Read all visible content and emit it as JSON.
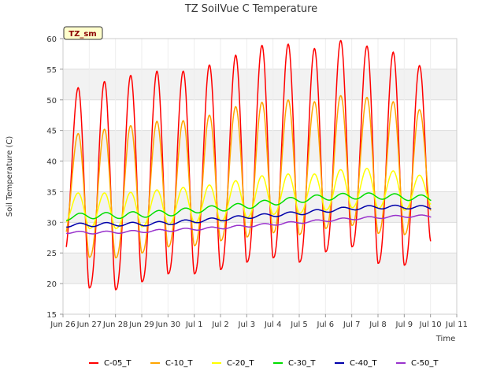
{
  "chart_data": {
    "type": "line",
    "title": "TZ SoilVue C Temperature",
    "xlabel": "Time",
    "ylabel": "Soil Temperature (C)",
    "tag": "TZ_sm",
    "ylim": [
      15,
      60
    ],
    "yticks": [
      15,
      20,
      25,
      30,
      35,
      40,
      45,
      50,
      55,
      60
    ],
    "xlim": [
      "2024-06-26",
      "2024-07-11"
    ],
    "xticks": [
      "Jun 26",
      "Jun 27",
      "Jun 28",
      "Jun 29",
      "Jun 30",
      "Jul 1",
      "Jul 2",
      "Jul 3",
      "Jul 4",
      "Jul 5",
      "Jul 6",
      "Jul 7",
      "Jul 8",
      "Jul 9",
      "Jul 10",
      "Jul 11"
    ],
    "grid": true,
    "legend_position": "bottom",
    "x_dates": [
      "2024-06-26",
      "2024-06-27",
      "2024-06-28",
      "2024-06-29",
      "2024-06-30",
      "2024-07-01",
      "2024-07-02",
      "2024-07-03",
      "2024-07-04",
      "2024-07-05",
      "2024-07-06",
      "2024-07-07",
      "2024-07-08",
      "2024-07-09",
      "2024-07-10"
    ],
    "series": [
      {
        "name": "C-05_T",
        "color": "#ff0000",
        "daily_max": [
          52.0,
          53.0,
          54.0,
          54.7,
          54.7,
          55.7,
          57.3,
          58.9,
          59.1,
          58.4,
          59.7,
          58.8,
          57.8,
          55.6,
          null
        ],
        "daily_min": [
          24.4,
          19.3,
          19.0,
          20.3,
          21.6,
          21.6,
          22.3,
          23.5,
          24.2,
          23.5,
          25.2,
          26.0,
          23.3,
          23.0,
          27.0
        ]
      },
      {
        "name": "C-10_T",
        "color": "#ffa500",
        "daily_max": [
          44.5,
          45.2,
          45.8,
          46.5,
          46.6,
          47.5,
          48.9,
          49.6,
          50.0,
          49.7,
          50.7,
          50.4,
          49.7,
          48.4,
          null
        ],
        "daily_min": [
          27.5,
          24.3,
          24.2,
          25.0,
          26.0,
          26.2,
          27.0,
          27.6,
          28.3,
          28.0,
          29.0,
          29.5,
          28.2,
          28.0,
          32.0
        ]
      },
      {
        "name": "C-20_T",
        "color": "#ffff00",
        "daily_max": [
          34.8,
          34.8,
          34.9,
          35.3,
          35.7,
          36.1,
          36.8,
          37.6,
          37.9,
          37.9,
          38.6,
          38.8,
          38.4,
          37.7,
          null
        ],
        "daily_min": [
          29.8,
          29.0,
          29.0,
          29.3,
          29.6,
          29.9,
          30.2,
          30.8,
          31.3,
          31.5,
          32.0,
          32.4,
          32.3,
          32.0,
          33.0
        ]
      },
      {
        "name": "C-30_T",
        "color": "#00dd00",
        "daily_max": [
          31.3,
          31.6,
          31.6,
          31.8,
          32.0,
          32.5,
          32.8,
          33.2,
          33.8,
          34.2,
          34.6,
          34.8,
          34.8,
          34.6,
          34.4
        ]
      },
      {
        "name": "C-40_T",
        "color": "#0000aa",
        "daily_max": [
          29.8,
          29.9,
          30.0,
          30.0,
          30.2,
          30.5,
          30.8,
          31.2,
          31.5,
          31.8,
          32.2,
          32.6,
          32.8,
          32.8,
          32.7
        ]
      },
      {
        "name": "C-50_T",
        "color": "#9933cc",
        "daily_max": [
          28.6,
          28.5,
          28.6,
          28.7,
          28.9,
          29.1,
          29.3,
          29.6,
          29.9,
          30.2,
          30.5,
          30.8,
          31.0,
          31.2,
          31.2
        ]
      }
    ]
  }
}
